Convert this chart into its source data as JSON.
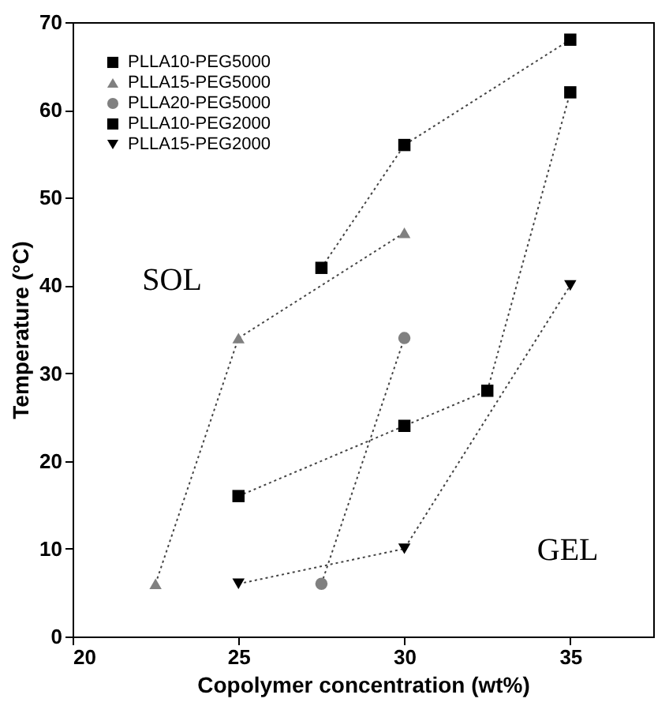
{
  "chart_data": {
    "type": "line",
    "xlabel": "Copolymer concentration (wt%)",
    "ylabel": "Temperature (°C)",
    "xlim": [
      20,
      37.5
    ],
    "xticks": [
      20,
      25,
      30,
      35
    ],
    "ylim": [
      0,
      70
    ],
    "yticks": [
      0,
      10,
      20,
      30,
      40,
      50,
      60,
      70
    ],
    "grid": false,
    "legend": "top left",
    "line_style": "dotted",
    "annotations": [
      "SOL",
      "GEL"
    ],
    "series": [
      {
        "name": "PLLA10-PEG5000",
        "color": "#000000",
        "marker": "square",
        "x": [
          27.5,
          30,
          35
        ],
        "values": [
          42,
          56,
          68
        ]
      },
      {
        "name": "PLLA15-PEG5000",
        "color": "#808080",
        "marker": "triangle",
        "x": [
          22.5,
          25,
          30
        ],
        "values": [
          6,
          34,
          46
        ]
      },
      {
        "name": "PLLA20-PEG5000",
        "color": "#808080",
        "marker": "circle",
        "x": [
          27.5,
          30
        ],
        "values": [
          6,
          34
        ]
      },
      {
        "name": "PLLA10-PEG2000",
        "color": "#000000",
        "marker": "square",
        "x": [
          25,
          30,
          32.5,
          35
        ],
        "values": [
          16,
          24,
          28,
          62
        ]
      },
      {
        "name": "PLLA15-PEG2000",
        "color": "#000000",
        "marker": "triangle-down",
        "x": [
          25,
          30,
          35
        ],
        "values": [
          6,
          10,
          40
        ]
      }
    ]
  }
}
